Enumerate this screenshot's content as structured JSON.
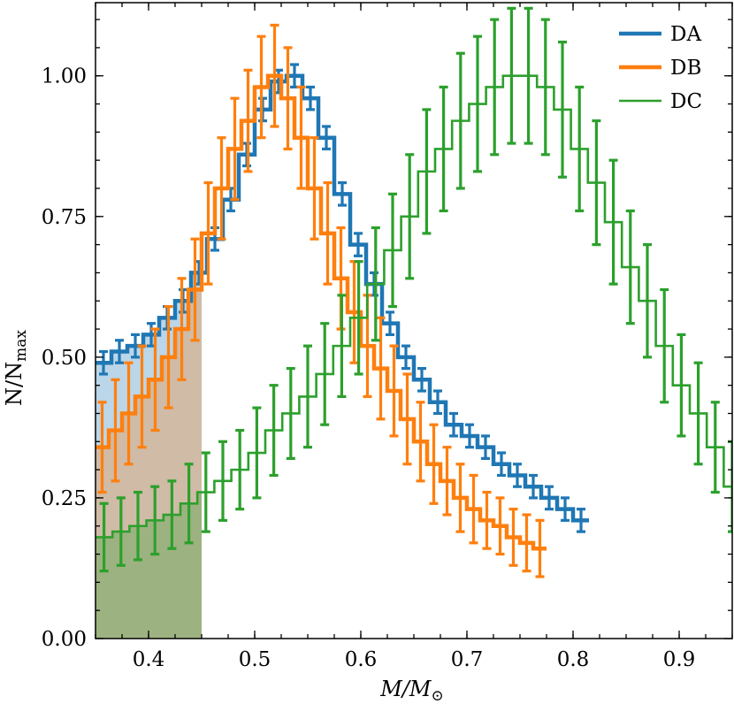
{
  "chart_data": {
    "type": "step-histogram",
    "xlabel": "M/M",
    "xlabel_subscript": "⊙",
    "ylabel": "N/N",
    "ylabel_subscript": "max",
    "xlim": [
      0.35,
      0.95
    ],
    "ylim": [
      0.0,
      1.13
    ],
    "x_ticks": [
      0.4,
      0.5,
      0.6,
      0.7,
      0.8,
      0.9
    ],
    "x_tick_labels": [
      "0.4",
      "0.5",
      "0.6",
      "0.7",
      "0.8",
      "0.9"
    ],
    "y_ticks": [
      0.0,
      0.25,
      0.5,
      0.75,
      1.0
    ],
    "y_tick_labels": [
      "0.00",
      "0.25",
      "0.50",
      "0.75",
      "1.00"
    ],
    "legend_position": "top-right",
    "bin_start": 0.35,
    "bin_width": 0.015,
    "shaded_region": {
      "x_from": 0.35,
      "x_to": 0.45
    },
    "series": [
      {
        "name": "DA",
        "color": "#1f77b4",
        "line": "thick",
        "values": [
          0.49,
          0.51,
          0.52,
          0.54,
          0.57,
          0.6,
          0.65,
          0.71,
          0.78,
          0.86,
          0.94,
          0.99,
          1.0,
          0.96,
          0.89,
          0.79,
          0.7,
          0.63,
          0.56,
          0.5,
          0.46,
          0.42,
          0.38,
          0.36,
          0.34,
          0.31,
          0.29,
          0.27,
          0.25,
          0.23,
          0.21
        ],
        "errors": [
          0.02,
          0.02,
          0.02,
          0.02,
          0.02,
          0.02,
          0.02,
          0.02,
          0.02,
          0.02,
          0.02,
          0.02,
          0.02,
          0.02,
          0.02,
          0.02,
          0.02,
          0.02,
          0.02,
          0.02,
          0.02,
          0.02,
          0.02,
          0.02,
          0.02,
          0.02,
          0.02,
          0.02,
          0.02,
          0.02,
          0.02
        ]
      },
      {
        "name": "DB",
        "color": "#ff7f0e",
        "line": "thick",
        "values": [
          0.34,
          0.37,
          0.4,
          0.43,
          0.46,
          0.5,
          0.55,
          0.62,
          0.72,
          0.8,
          0.87,
          0.92,
          0.98,
          1.0,
          0.96,
          0.89,
          0.8,
          0.72,
          0.64,
          0.58,
          0.52,
          0.48,
          0.44,
          0.39,
          0.35,
          0.31,
          0.28,
          0.25,
          0.23,
          0.21,
          0.2,
          0.18,
          0.17,
          0.16
        ],
        "errors": [
          0.08,
          0.09,
          0.09,
          0.09,
          0.09,
          0.09,
          0.09,
          0.09,
          0.09,
          0.09,
          0.09,
          0.09,
          0.09,
          0.09,
          0.09,
          0.09,
          0.09,
          0.09,
          0.09,
          0.09,
          0.09,
          0.09,
          0.08,
          0.08,
          0.07,
          0.07,
          0.06,
          0.06,
          0.06,
          0.05,
          0.05,
          0.05,
          0.05,
          0.05
        ],
        "bin_start": 0.35,
        "bin_width": 0.0125
      },
      {
        "name": "DC",
        "color": "#2ca02c",
        "line": "thin",
        "values": [
          0.18,
          0.19,
          0.2,
          0.21,
          0.22,
          0.24,
          0.26,
          0.28,
          0.3,
          0.33,
          0.37,
          0.4,
          0.43,
          0.47,
          0.52,
          0.57,
          0.63,
          0.69,
          0.75,
          0.83,
          0.87,
          0.92,
          0.95,
          0.98,
          1.0,
          1.0,
          0.98,
          0.94,
          0.87,
          0.81,
          0.74,
          0.66,
          0.6,
          0.52,
          0.45,
          0.4,
          0.34,
          0.27
        ],
        "errors": [
          0.06,
          0.06,
          0.06,
          0.06,
          0.06,
          0.07,
          0.07,
          0.07,
          0.07,
          0.08,
          0.08,
          0.08,
          0.09,
          0.09,
          0.09,
          0.1,
          0.1,
          0.1,
          0.11,
          0.11,
          0.11,
          0.12,
          0.12,
          0.12,
          0.12,
          0.12,
          0.12,
          0.12,
          0.11,
          0.11,
          0.11,
          0.1,
          0.1,
          0.1,
          0.09,
          0.09,
          0.08,
          0.08
        ],
        "bin_start": 0.35,
        "bin_width": 0.016
      }
    ]
  }
}
